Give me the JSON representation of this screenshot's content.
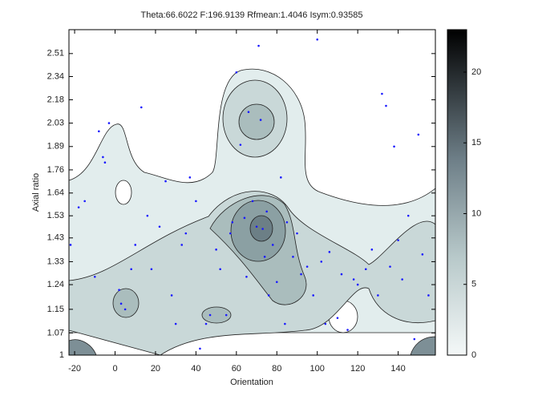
{
  "chart_data": {
    "type": "scatter",
    "title": "Theta:66.6022 F:196.9139 Rfmean:1.4046 Isym:0.93585",
    "x_label": "Orientation",
    "y_label": "Axial ratio",
    "xlim": [
      -22.8,
      158.4
    ],
    "ylim": [
      1,
      2.7
    ],
    "yscale": "log",
    "xticks": [
      -20,
      0,
      20,
      40,
      60,
      80,
      100,
      120,
      140
    ],
    "yticks": [
      1,
      1.07,
      1.15,
      1.24,
      1.33,
      1.43,
      1.53,
      1.64,
      1.76,
      1.89,
      2.03,
      2.18,
      2.34,
      2.51
    ],
    "colorbar": {
      "clim": [
        0,
        23
      ],
      "ticks": [
        0,
        5,
        10,
        15,
        20
      ]
    },
    "color": "#1a1aff",
    "x": [
      -22,
      -18,
      -15,
      -10,
      -8,
      -6,
      -5,
      -3,
      2,
      3,
      5,
      8,
      10,
      13,
      16,
      18,
      22,
      25,
      28,
      30,
      33,
      35,
      37,
      40,
      42,
      45,
      47,
      50,
      52,
      55,
      57,
      58,
      60,
      62,
      64,
      65,
      66,
      68,
      70,
      71,
      72,
      73,
      74,
      75,
      76,
      78,
      80,
      82,
      84,
      85,
      88,
      90,
      92,
      95,
      98,
      100,
      102,
      104,
      106,
      110,
      112,
      115,
      118,
      120,
      124,
      127,
      130,
      132,
      134,
      136,
      138,
      140,
      142,
      145,
      148,
      150,
      152,
      155
    ],
    "y": [
      1.4,
      1.57,
      1.6,
      1.27,
      1.98,
      1.83,
      1.8,
      2.03,
      1.22,
      1.17,
      1.15,
      1.3,
      1.4,
      2.13,
      1.53,
      1.3,
      1.48,
      1.7,
      1.2,
      1.1,
      1.4,
      1.45,
      1.72,
      1.6,
      1.02,
      1.1,
      1.13,
      1.38,
      1.3,
      1.13,
      1.45,
      1.5,
      2.37,
      1.9,
      1.52,
      1.27,
      2.1,
      1.6,
      1.48,
      2.57,
      2.05,
      1.47,
      1.35,
      1.55,
      1.2,
      1.4,
      1.25,
      1.72,
      1.1,
      1.5,
      1.35,
      1.45,
      1.28,
      1.31,
      1.2,
      2.62,
      1.33,
      1.1,
      1.37,
      1.12,
      1.28,
      1.08,
      1.26,
      1.24,
      1.3,
      1.38,
      1.2,
      2.22,
      2.14,
      1.31,
      1.89,
      1.42,
      1.26,
      1.53,
      1.05,
      1.96,
      1.36,
      1.2
    ]
  }
}
